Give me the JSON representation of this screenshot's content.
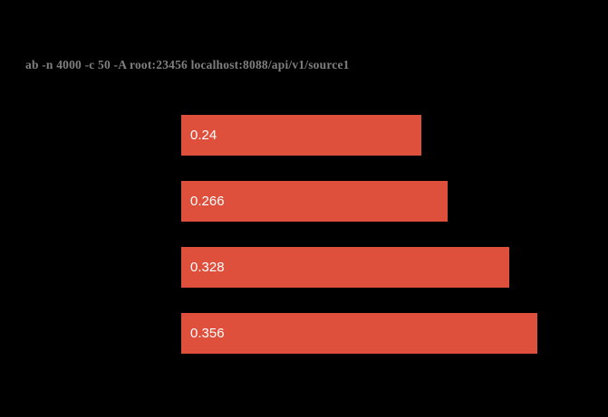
{
  "chart": {
    "colors": {
      "background": "#000000",
      "bar": "#de4f3c",
      "title_text": "#7f7f7f",
      "bar_label_text": "#ffffff"
    }
  },
  "chart_data": {
    "type": "bar",
    "orientation": "horizontal",
    "title": "ab -n 4000 -c 50 -A root:23456 localhost:8088/api/v1/source1",
    "xlabel": "",
    "ylabel": "",
    "values": [
      0.24,
      0.266,
      0.328,
      0.356
    ],
    "value_labels": [
      "0.24",
      "0.266",
      "0.328",
      "0.356"
    ],
    "xlim": [
      0,
      0.4
    ],
    "grid": false,
    "legend": false,
    "axes_visible": false,
    "label_position": "inside-left"
  }
}
